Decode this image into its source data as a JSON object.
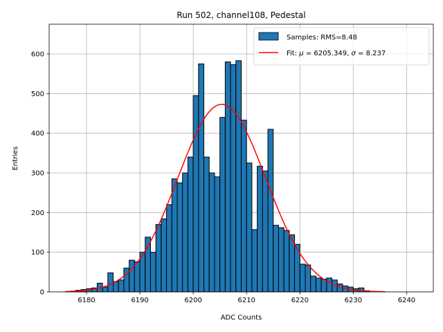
{
  "chart_data": {
    "type": "bar",
    "title": "Run 502, channel108, Pedestal",
    "xlabel": "ADC Counts",
    "ylabel": "Entries",
    "xlim": [
      6173,
      6245
    ],
    "ylim": [
      0,
      675
    ],
    "xticks": [
      6180,
      6190,
      6200,
      6210,
      6220,
      6230,
      6240
    ],
    "yticks": [
      0,
      100,
      200,
      300,
      400,
      500,
      600
    ],
    "grid": true,
    "legend_position": "top-right",
    "bin_width": 1,
    "histogram": {
      "name": "Samples: RMS=8.48",
      "color": "#1f77b4",
      "edgecolor": "#000000",
      "bins_start": [
        6177,
        6178,
        6179,
        6180,
        6181,
        6182,
        6183,
        6184,
        6185,
        6186,
        6187,
        6188,
        6189,
        6190,
        6191,
        6192,
        6193,
        6194,
        6195,
        6196,
        6197,
        6198,
        6199,
        6200,
        6201,
        6202,
        6203,
        6204,
        6205,
        6206,
        6207,
        6208,
        6209,
        6210,
        6211,
        6212,
        6213,
        6214,
        6215,
        6216,
        6217,
        6218,
        6219,
        6220,
        6221,
        6222,
        6223,
        6224,
        6225,
        6226,
        6227,
        6228,
        6229,
        6230,
        6231,
        6232
      ],
      "values": [
        2,
        4,
        6,
        8,
        10,
        22,
        12,
        48,
        26,
        30,
        60,
        80,
        76,
        100,
        138,
        100,
        170,
        184,
        220,
        285,
        275,
        300,
        340,
        495,
        575,
        340,
        300,
        290,
        440,
        580,
        573,
        583,
        433,
        325,
        157,
        317,
        305,
        410,
        168,
        162,
        155,
        144,
        120,
        70,
        68,
        40,
        35,
        32,
        35,
        30,
        20,
        15,
        12,
        8,
        10,
        3
      ]
    },
    "fit": {
      "label_prefix": "Fit: ",
      "mu_symbol": "μ",
      "mu_value": "6205.349",
      "sigma_symbol": "σ",
      "sigma_value": "8.237",
      "mu": 6205.349,
      "sigma": 8.237,
      "amplitude": 473,
      "x_range": [
        6176,
        6236
      ],
      "color": "#ff0000"
    }
  }
}
